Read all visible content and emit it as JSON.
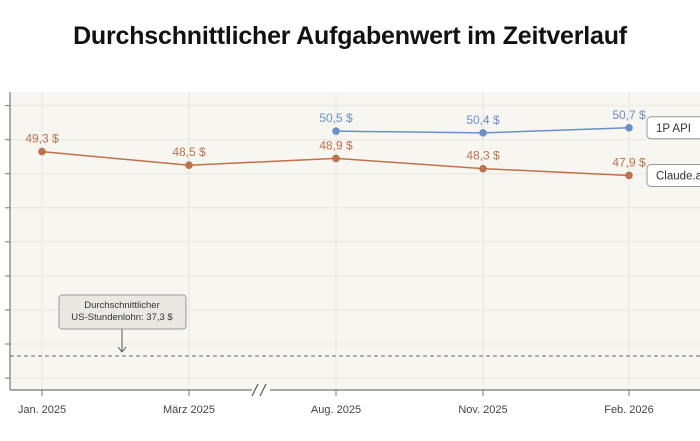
{
  "chart_data": {
    "type": "line",
    "title": "Durchschnittlicher Aufgabenwert im Zeitverlauf",
    "categories": [
      "Jan. 2025",
      "März 2025",
      "Aug. 2025",
      "Nov. 2025",
      "Feb. 2026"
    ],
    "axis_break_between": [
      "März 2025",
      "Aug. 2025"
    ],
    "ylim": [
      35.3,
      52.8
    ],
    "yticks": [
      36,
      38,
      40,
      42,
      44,
      46,
      48,
      50,
      52
    ],
    "ytick_labels_shown": false,
    "grid": true,
    "series": [
      {
        "name": "1P API",
        "color": "#6a8fca",
        "values": [
          null,
          null,
          50.5,
          50.4,
          50.7
        ],
        "labels": [
          "",
          "",
          "50,5 $",
          "50,4 $",
          "50,7 $"
        ]
      },
      {
        "name": "Claude.ai",
        "color": "#c0714a",
        "values": [
          49.3,
          48.5,
          48.9,
          48.3,
          47.9
        ],
        "labels": [
          "49,3 $",
          "48,5 $",
          "48,9 $",
          "48,3 $",
          "47,9 $"
        ]
      }
    ],
    "reference_line": {
      "value": 37.3,
      "style": "dashed",
      "annotation": [
        "Durchschnittlicher",
        "US-Stundenlohn: 37,3 $"
      ]
    },
    "legend_placement": "right, end-of-line labels"
  }
}
